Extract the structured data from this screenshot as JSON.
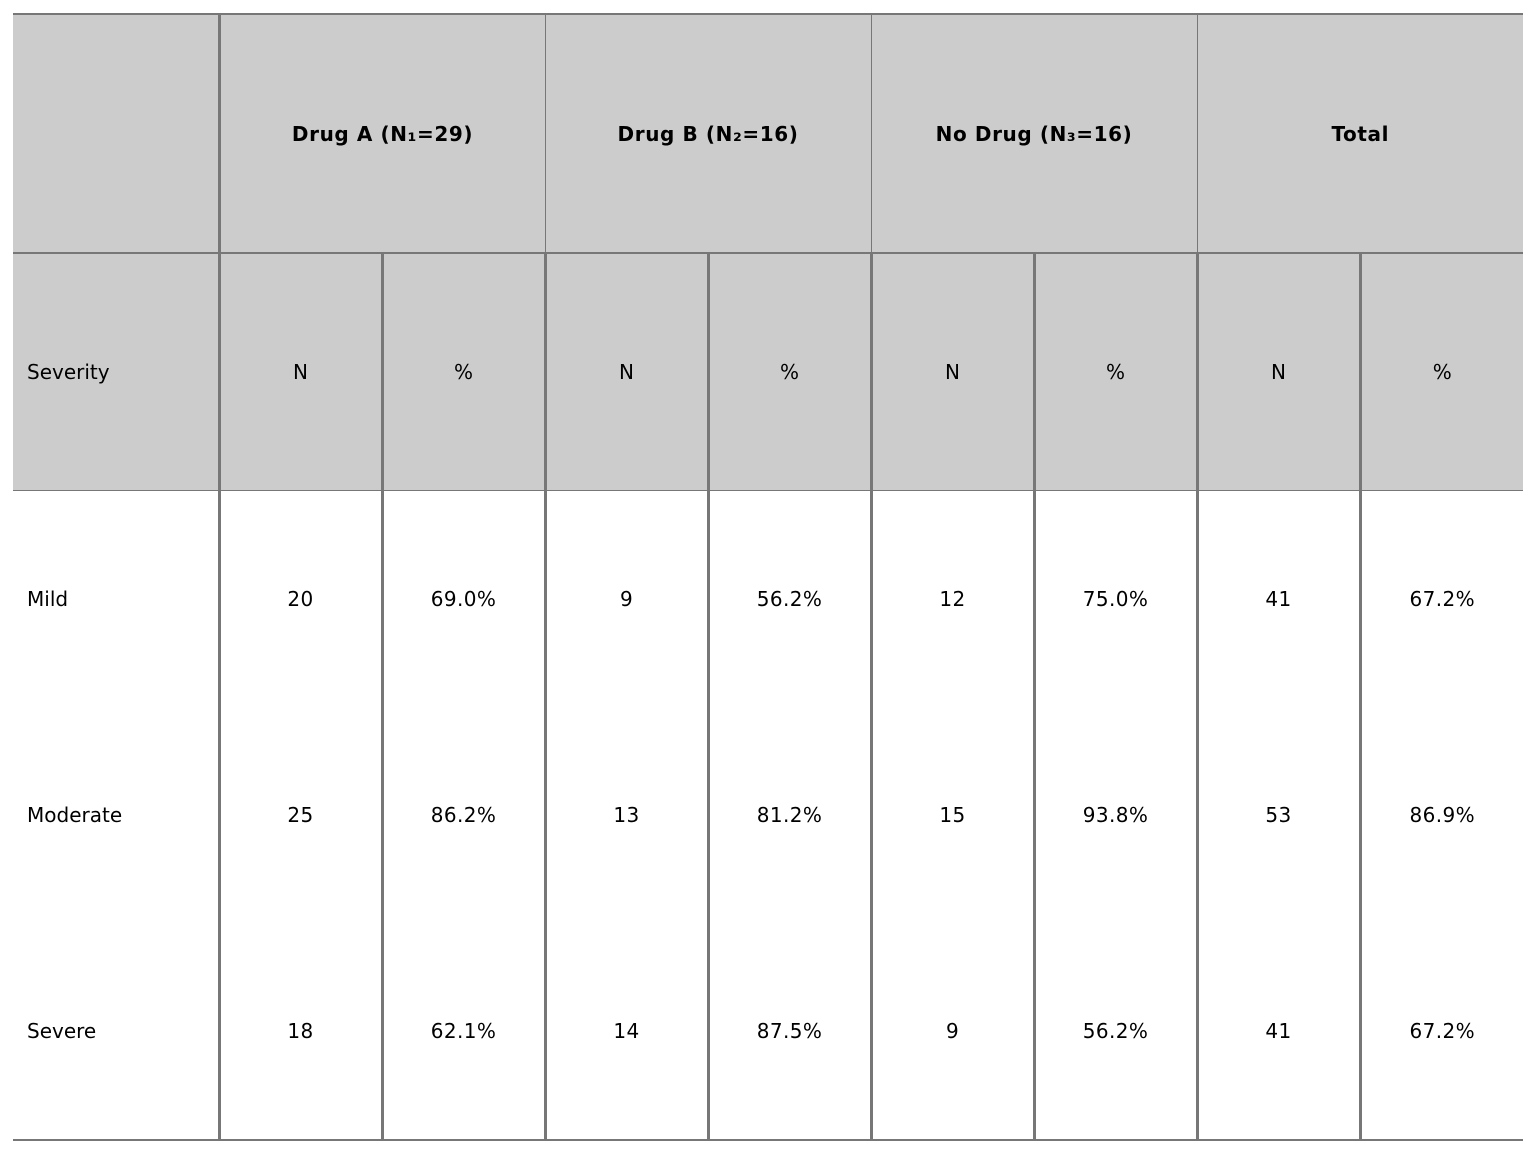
{
  "table": {
    "groups": [
      "Drug A (N₁=29)",
      "Drug B (N₂=16)",
      "No Drug (N₃=16)",
      "Total"
    ],
    "row_header": "Severity",
    "sub_headers": [
      "N",
      "%",
      "N",
      "%",
      "N",
      "%",
      "N",
      "%"
    ],
    "rows": [
      {
        "label": "Mild",
        "cells": [
          "20",
          "69.0%",
          "9",
          "56.2%",
          "12",
          "75.0%",
          "41",
          "67.2%"
        ]
      },
      {
        "label": "Moderate",
        "cells": [
          "25",
          "86.2%",
          "13",
          "81.2%",
          "15",
          "93.8%",
          "53",
          "86.9%"
        ]
      },
      {
        "label": "Severe",
        "cells": [
          "18",
          "62.1%",
          "14",
          "87.5%",
          "9",
          "56.2%",
          "41",
          "67.2%"
        ]
      }
    ]
  },
  "colors": {
    "header_bg": "#cccccc",
    "rule": "#777777"
  }
}
